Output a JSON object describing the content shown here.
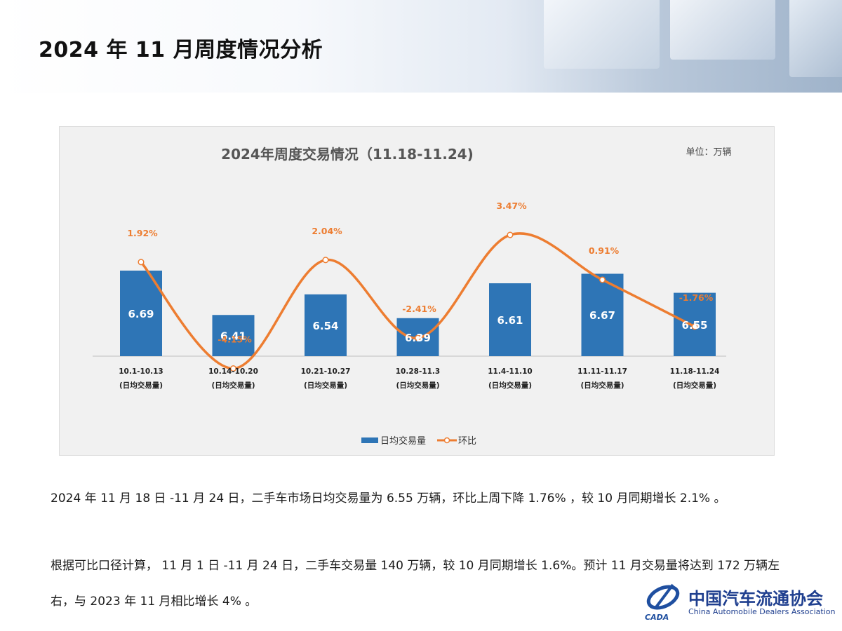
{
  "page": {
    "title": "2024 年 11 月周度情况分析"
  },
  "chart": {
    "title": "2024年周度交易情况（11.18-11.24)",
    "unit": "单位：万辆"
  },
  "chart_data": {
    "type": "bar",
    "title": "2024年周度交易情况（11.18-11.24)",
    "unit": "单位：万辆",
    "categories": [
      "10.1-10.13",
      "10.14-10.20",
      "10.21-10.27",
      "10.28-11.3",
      "11.4-11.10",
      "11.11-11.17",
      "11.18-11.24"
    ],
    "category_sublabel": "(日均交易量)",
    "series": [
      {
        "name": "日均交易量",
        "type": "bar",
        "color": "#2e75b6",
        "values": [
          6.69,
          6.41,
          6.54,
          6.39,
          6.61,
          6.67,
          6.55
        ]
      },
      {
        "name": "环比",
        "type": "line",
        "color": "#ed7d31",
        "values": [
          1.92,
          -4.15,
          2.04,
          -2.41,
          3.47,
          0.91,
          -1.76
        ],
        "labels": [
          "1.92%",
          "-4.15%",
          "2.04%",
          "-2.41%",
          "3.47%",
          "0.91%",
          "-1.76%"
        ]
      }
    ],
    "legend": "bottom",
    "grid": false
  },
  "text": {
    "para1": "2024 年 11 月 18 日 -11 月 24 日，二手车市场日均交易量为 6.55 万辆，环比上周下降 1.76% ，较 10 月同期增长 2.1% 。",
    "para2": "根据可比口径计算， 11 月 1 日 -11 月 24 日，二手车交易量 140 万辆，较 10 月同期增长 1.6%。预计 11 月交易量将达到 172 万辆左右，与 2023 年 11 月相比增长 4% 。"
  },
  "logo": {
    "name_cn": "中国汽车流通协会",
    "name_en": "China Automobile Dealers Association",
    "abbr": "CADA"
  }
}
